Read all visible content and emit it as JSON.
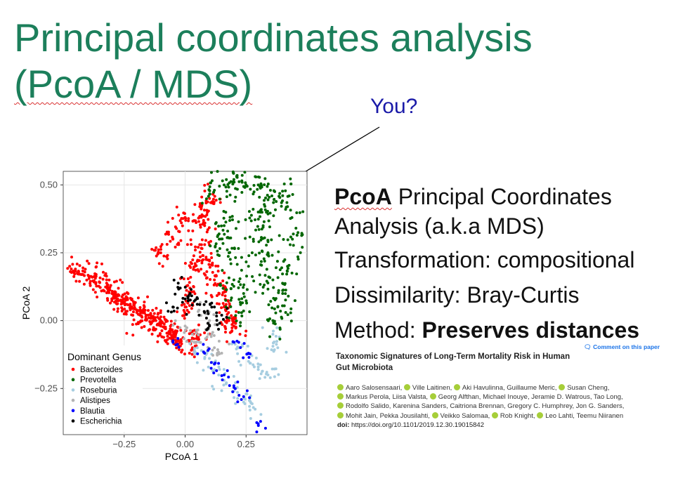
{
  "slide": {
    "title_line1": "Principal coordinates analysis",
    "title_line2": "(PcoA / MDS)",
    "annotation": "You?",
    "colors": {
      "title": "#1c7f5b",
      "annotation": "#1a1aa8"
    }
  },
  "description": {
    "line1_bold": "PcoA",
    "line1_rest": " Principal Coordinates",
    "line2": "Analysis (a.k.a MDS)",
    "line3": "Transformation: compositional",
    "line4": "Dissimilarity: Bray-Curtis",
    "line5_prefix": "Method: ",
    "line5_bold": "Preserves distances"
  },
  "paper": {
    "comment_link": "Comment on this paper",
    "title_line1": "Taxonomic Signatures of Long-Term Mortality Risk in Human",
    "title_line2": "Gut Microbiota",
    "authors": [
      "Aaro Salosensaari,",
      "Ville Laitinen,",
      "Aki Havulinna,",
      "Guillaume Meric,",
      "Susan Cheng,",
      "Markus Perola, Liisa Valsta,",
      "Georg Alfthan,",
      "Michael Inouye, Jeramie D. Watrous, Tao Long,",
      "Rodolfo Salido, Karenina Sanders, Caitriona Brennan, Gregory C. Humphrey, Jon G. Sanders,",
      "Mohit Jain, Pekka Jousilahti,",
      "Veikko Salomaa,",
      "Rob Knight,",
      "Leo Lahti,",
      "Teemu Niiranen"
    ],
    "doi_label": "doi:",
    "doi_value": " https://doi.org/10.1101/2019.12.30.19015842"
  },
  "chart_data": {
    "type": "scatter",
    "xlabel": "PCoA 1",
    "ylabel": "PCoA 2",
    "xlim": [
      -0.5,
      0.5
    ],
    "ylim": [
      -0.42,
      0.55
    ],
    "xticks": [
      -0.25,
      0.0,
      0.25
    ],
    "xtick_labels": [
      "−0.25",
      "0.00",
      "0.25"
    ],
    "yticks": [
      -0.25,
      0.0,
      0.25,
      0.5
    ],
    "ytick_labels": [
      "−0.25",
      "0.00",
      "0.25",
      "0.50"
    ],
    "grid": true,
    "legend_title": "Dominant Genus",
    "legend_position": "bottom-left",
    "series": [
      {
        "name": "Bacteroides",
        "color": "#ff0000",
        "points": [
          [
            -0.45,
            0.19
          ],
          [
            -0.42,
            0.17
          ],
          [
            -0.38,
            0.16
          ],
          [
            -0.35,
            0.14
          ],
          [
            -0.32,
            0.12
          ],
          [
            -0.3,
            0.1
          ],
          [
            -0.28,
            0.08
          ],
          [
            -0.26,
            0.07
          ],
          [
            -0.24,
            0.06
          ],
          [
            -0.22,
            0.05
          ],
          [
            -0.2,
            0.04
          ],
          [
            -0.18,
            0.03
          ],
          [
            -0.16,
            0.02
          ],
          [
            -0.14,
            0.01
          ],
          [
            -0.12,
            0.0
          ],
          [
            -0.1,
            -0.02
          ],
          [
            -0.08,
            -0.03
          ],
          [
            -0.06,
            -0.05
          ],
          [
            -0.04,
            -0.06
          ],
          [
            -0.02,
            -0.08
          ],
          [
            0.0,
            0.05
          ],
          [
            0.02,
            0.12
          ],
          [
            0.04,
            0.2
          ],
          [
            0.06,
            0.28
          ],
          [
            0.08,
            0.35
          ],
          [
            0.1,
            0.22
          ],
          [
            0.12,
            0.15
          ],
          [
            0.14,
            0.1
          ],
          [
            0.16,
            0.05
          ],
          [
            0.18,
            0.0
          ],
          [
            0.2,
            -0.02
          ],
          [
            0.05,
            -0.05
          ],
          [
            0.03,
            -0.1
          ],
          [
            -0.1,
            0.25
          ],
          [
            -0.05,
            0.3
          ],
          [
            0.0,
            0.38
          ],
          [
            0.06,
            0.42
          ],
          [
            0.1,
            0.45
          ]
        ]
      },
      {
        "name": "Prevotella",
        "color": "#006600",
        "points": [
          [
            0.12,
            0.48
          ],
          [
            0.16,
            0.5
          ],
          [
            0.2,
            0.52
          ],
          [
            0.25,
            0.5
          ],
          [
            0.3,
            0.5
          ],
          [
            0.35,
            0.48
          ],
          [
            0.4,
            0.46
          ],
          [
            0.42,
            0.42
          ],
          [
            0.44,
            0.3
          ],
          [
            0.42,
            0.2
          ],
          [
            0.4,
            0.1
          ],
          [
            0.38,
            0.05
          ],
          [
            0.36,
            0.15
          ],
          [
            0.34,
            0.25
          ],
          [
            0.32,
            0.35
          ],
          [
            0.3,
            0.4
          ],
          [
            0.28,
            0.3
          ],
          [
            0.26,
            0.2
          ],
          [
            0.24,
            0.1
          ],
          [
            0.22,
            0.03
          ],
          [
            0.2,
            0.15
          ],
          [
            0.18,
            0.25
          ],
          [
            0.16,
            0.35
          ],
          [
            0.14,
            0.3
          ],
          [
            0.36,
            0.0
          ]
        ]
      },
      {
        "name": "Roseburia",
        "color": "#a6cde0",
        "points": [
          [
            0.05,
            -0.1
          ],
          [
            0.08,
            -0.14
          ],
          [
            0.12,
            -0.18
          ],
          [
            0.16,
            -0.22
          ],
          [
            0.2,
            -0.26
          ],
          [
            0.24,
            -0.3
          ],
          [
            0.28,
            -0.32
          ],
          [
            0.22,
            -0.1
          ],
          [
            0.26,
            -0.15
          ],
          [
            0.3,
            -0.18
          ],
          [
            0.34,
            -0.2
          ],
          [
            0.38,
            -0.1
          ],
          [
            0.36,
            -0.05
          ]
        ]
      },
      {
        "name": "Alistipes",
        "color": "#b3b3b3",
        "points": [
          [
            0.0,
            -0.02
          ],
          [
            0.03,
            -0.05
          ],
          [
            0.06,
            -0.08
          ],
          [
            0.09,
            -0.06
          ],
          [
            0.12,
            -0.1
          ],
          [
            0.15,
            -0.12
          ],
          [
            0.1,
            0.0
          ],
          [
            0.06,
            0.02
          ]
        ]
      },
      {
        "name": "Blautia",
        "color": "#0000ff",
        "points": [
          [
            0.08,
            -0.12
          ],
          [
            0.12,
            -0.16
          ],
          [
            0.16,
            -0.2
          ],
          [
            0.2,
            -0.24
          ],
          [
            0.24,
            -0.28
          ],
          [
            0.22,
            -0.08
          ],
          [
            0.26,
            -0.12
          ],
          [
            -0.05,
            -0.08
          ],
          [
            0.3,
            -0.38
          ]
        ]
      },
      {
        "name": "Escherichia",
        "color": "#000000",
        "points": [
          [
            -0.05,
            0.05
          ],
          [
            0.0,
            0.08
          ],
          [
            0.05,
            0.06
          ],
          [
            0.08,
            0.03
          ],
          [
            0.12,
            0.05
          ],
          [
            0.15,
            0.02
          ],
          [
            0.1,
            -0.02
          ],
          [
            0.02,
            0.1
          ],
          [
            -0.02,
            0.12
          ]
        ]
      }
    ]
  }
}
